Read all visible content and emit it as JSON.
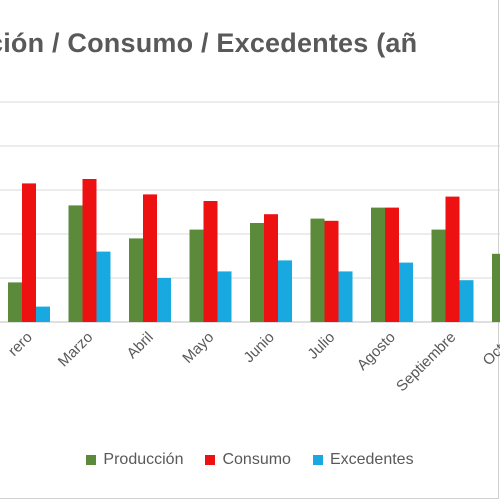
{
  "chart_data": {
    "type": "bar",
    "title": "ción  / Consumo  / Excedentes (añ",
    "categories": [
      "rero",
      "Marzo",
      "Abril",
      "Mayo",
      "Junio",
      "Julio",
      "Agosto",
      "Septiembre",
      "Octub"
    ],
    "series": [
      {
        "name": "Producción",
        "color": "#5b8a3a",
        "values": [
          0.9,
          2.65,
          1.9,
          2.1,
          2.25,
          2.35,
          2.6,
          2.1,
          1.55
        ]
      },
      {
        "name": "Consumo",
        "color": "#ee1111",
        "values": [
          3.15,
          3.25,
          2.9,
          2.75,
          2.45,
          2.3,
          2.6,
          2.85,
          null
        ]
      },
      {
        "name": "Excedentes",
        "color": "#19a9e1",
        "values": [
          0.35,
          1.6,
          1.0,
          1.15,
          1.4,
          1.15,
          1.35,
          0.95,
          null
        ]
      }
    ],
    "ylim": [
      0,
      5
    ],
    "grid": true,
    "legend": "bottom"
  }
}
